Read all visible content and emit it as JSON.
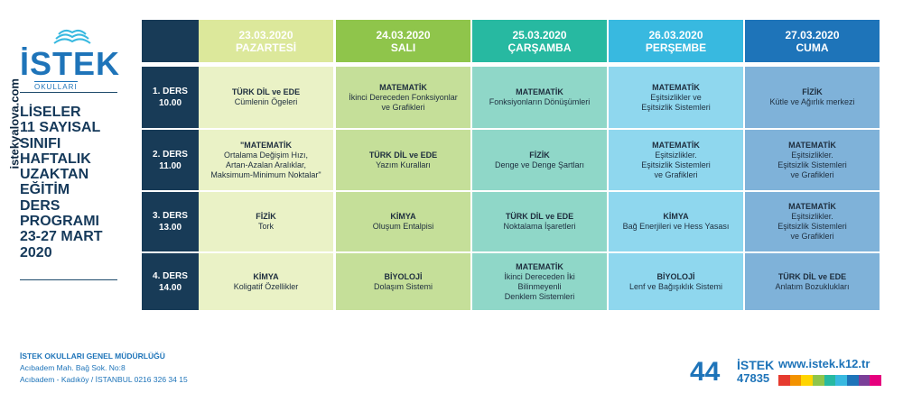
{
  "sidebar": {
    "logo_text": "İSTEK",
    "logo_sub": "OKULLARI",
    "vertical_url": "istekyalova.com",
    "title": "LİSELER\n11 SAYISAL\nSINIFI\nHAFTALIK\nUZAKTAN\nEĞİTİM\nDERS\nPROGRAMI\n23-27 MART\n2020"
  },
  "days": [
    {
      "date": "23.03.2020",
      "day": "PAZARTESİ",
      "color": "#dce89b",
      "cell_color": "#eaf2c6"
    },
    {
      "date": "24.03.2020",
      "day": "SALI",
      "color": "#8fc54b",
      "cell_color": "#c5df99"
    },
    {
      "date": "25.03.2020",
      "day": "ÇARŞAMBA",
      "color": "#27b9a1",
      "cell_color": "#8fd7c8"
    },
    {
      "date": "26.03.2020",
      "day": "PERŞEMBE",
      "color": "#38b9e0",
      "cell_color": "#8fd7ee"
    },
    {
      "date": "27.03.2020",
      "day": "CUMA",
      "color": "#1e74b9",
      "cell_color": "#7fb2d9"
    }
  ],
  "rows": [
    {
      "label1": "1. DERS",
      "label2": "10.00",
      "cells": [
        [
          "TÜRK DİL ve EDE",
          "Cümlenin Ögeleri"
        ],
        [
          "MATEMATİK",
          "İkinci Dereceden Fonksiyonlar",
          "ve Grafikleri"
        ],
        [
          "MATEMATİK",
          "Fonksiyonların Dönüşümleri"
        ],
        [
          "MATEMATİK",
          "Eşitsizlikler ve",
          "Eşitsizlik Sistemleri"
        ],
        [
          "FİZİK",
          "Kütle ve Ağırlık merkezi"
        ]
      ]
    },
    {
      "label1": "2. DERS",
      "label2": "11.00",
      "cells": [
        [
          "\"MATEMATİK",
          "Ortalama Değişim Hızı,",
          "Artan-Azalan Aralıklar,",
          "Maksimum-Minimum Noktalar\""
        ],
        [
          "TÜRK DİL ve EDE",
          "Yazım Kuralları"
        ],
        [
          "FİZİK",
          "Denge ve Denge Şartları"
        ],
        [
          "MATEMATİK",
          "Eşitsizlikler.",
          "Eşitsizlik Sistemleri",
          "ve Grafikleri"
        ],
        [
          "MATEMATİK",
          "Eşitsizlikler.",
          "Eşitsizlik Sistemleri",
          "ve Grafikleri"
        ]
      ]
    },
    {
      "label1": "3. DERS",
      "label2": "13.00",
      "cells": [
        [
          "FİZİK",
          "Tork"
        ],
        [
          "KİMYA",
          "Oluşum Entalpisi"
        ],
        [
          "TÜRK DİL ve EDE",
          "Noktalama İşaretleri"
        ],
        [
          "KİMYA",
          "Bağ Enerjileri ve Hess Yasası"
        ],
        [
          "MATEMATİK",
          "Eşitsizlikler.",
          "Eşitsizlik Sistemleri",
          "ve Grafikleri"
        ]
      ]
    },
    {
      "label1": "4. DERS",
      "label2": "14.00",
      "cells": [
        [
          "KİMYA",
          "Koligatif Özellikler"
        ],
        [
          "BİYOLOJİ",
          "Dolaşım Sistemi"
        ],
        [
          "MATEMATİK",
          "İkinci Dereceden İki",
          "Bilinmeyenli",
          "Denklem Sistemleri"
        ],
        [
          "BİYOLOJİ",
          "Lenf ve Bağışıklık Sistemi"
        ],
        [
          "TÜRK DİL ve EDE",
          "Anlatım Bozuklukları"
        ]
      ]
    }
  ],
  "footer": {
    "company": "İSTEK OKULLARI GENEL MÜDÜRLÜĞÜ",
    "address1": "Acıbadem Mah. Bağ Sok. No:8",
    "address2": "Acıbadem - Kadıköy / İSTANBUL 0216 326 34 15",
    "phone_big": "44",
    "phone_brand": "İSTEK",
    "phone_num": "47835",
    "website": "www.istek.k12.tr",
    "bar_colors": [
      "#e63b2e",
      "#f39200",
      "#ffd500",
      "#8fc54b",
      "#27b9a1",
      "#38b9e0",
      "#1e74b9",
      "#7a3f98",
      "#e6007e"
    ]
  }
}
